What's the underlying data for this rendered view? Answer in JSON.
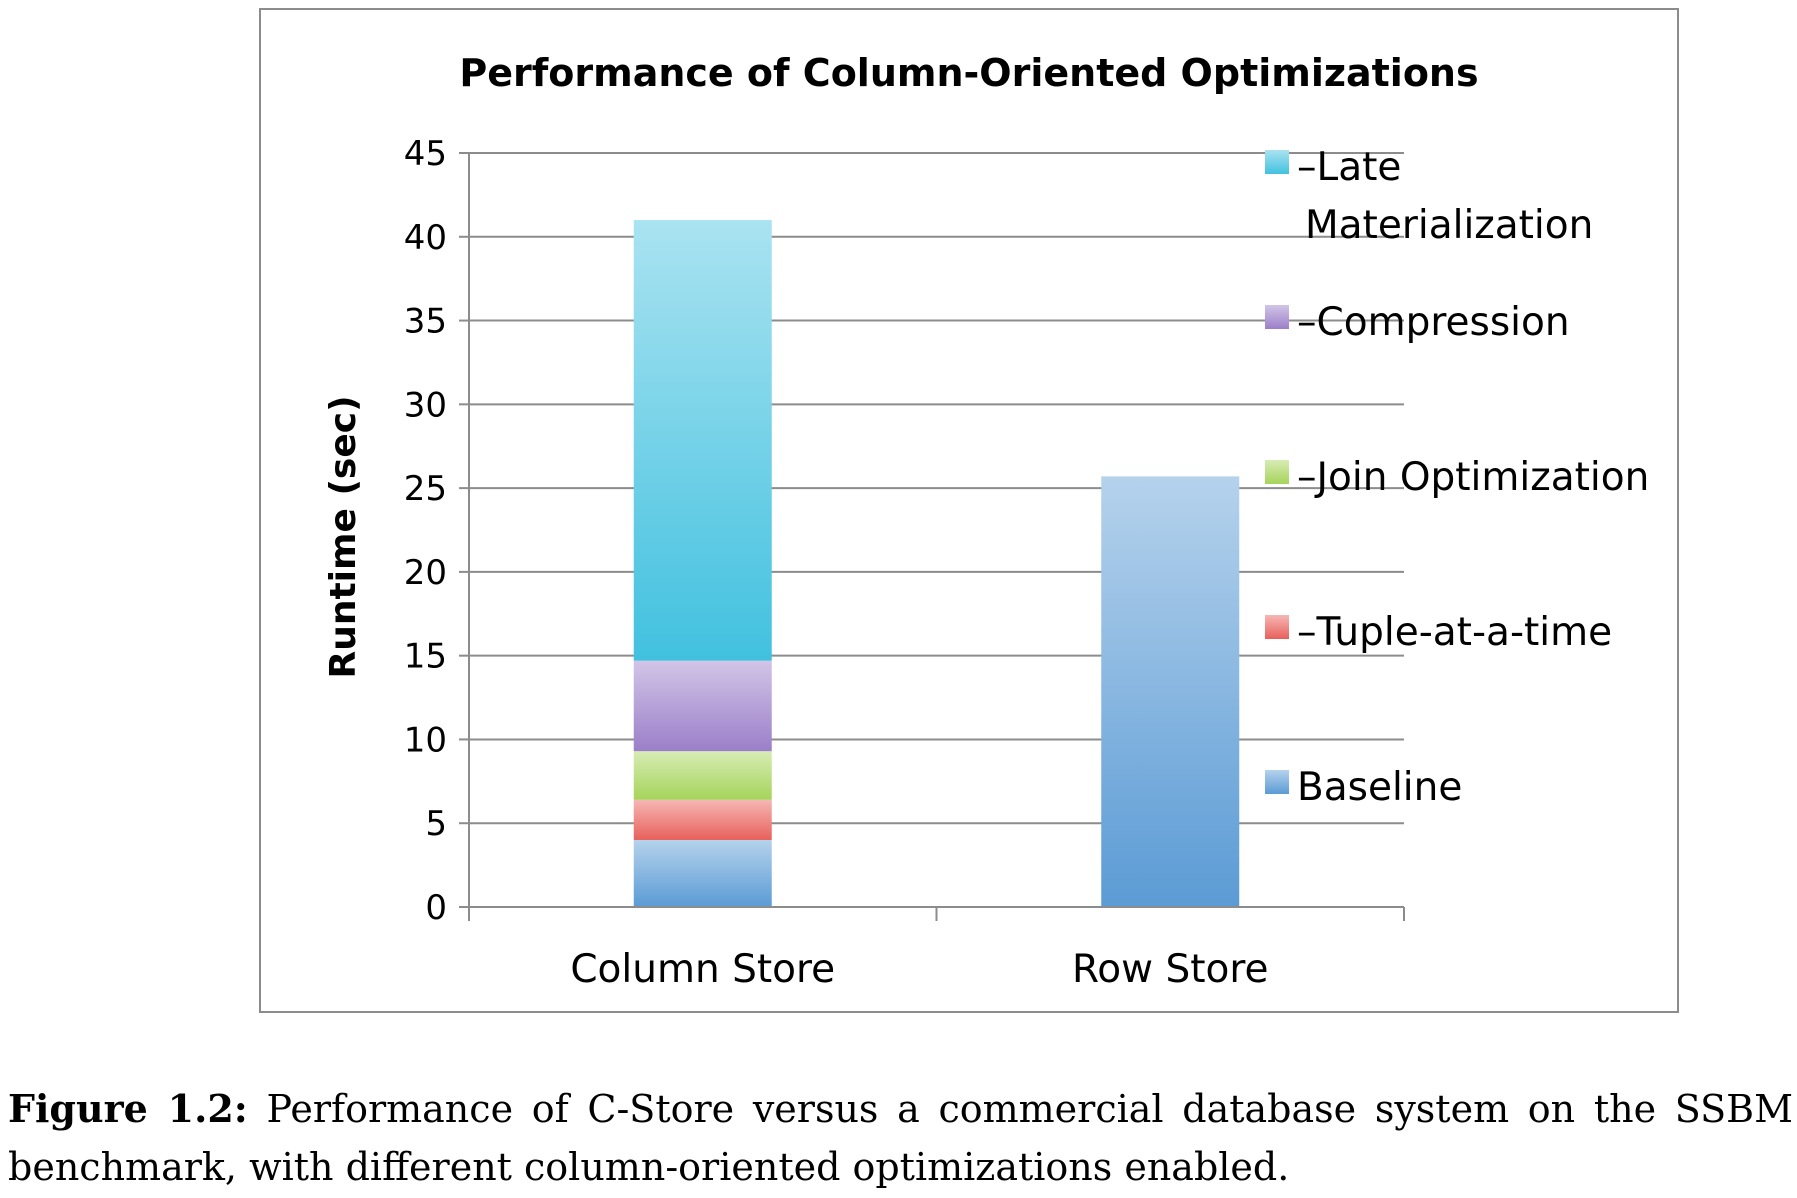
{
  "chart_data": {
    "type": "bar",
    "stacked": true,
    "title": "Performance of Column-Oriented Optimizations",
    "xlabel": "",
    "ylabel": "Runtime (sec)",
    "ylim": [
      0,
      45
    ],
    "yticks": [
      0,
      5,
      10,
      15,
      20,
      25,
      30,
      35,
      40,
      45
    ],
    "grid": true,
    "legend_position": "right",
    "categories": [
      "Column Store",
      "Row Store"
    ],
    "series": [
      {
        "name": "Baseline",
        "values": [
          4.0,
          25.7
        ],
        "color": "#5b9bd5"
      },
      {
        "name": "–Tuple-at-a-time",
        "values": [
          2.4,
          0
        ],
        "color": "#e8605a"
      },
      {
        "name": "–Join Optimization",
        "values": [
          2.9,
          0
        ],
        "color": "#a6d45a"
      },
      {
        "name": "–Compression",
        "values": [
          5.4,
          0
        ],
        "color": "#9b7fc9"
      },
      {
        "name": "–Late Materialization",
        "values": [
          26.3,
          0
        ],
        "color": "#41c1df"
      }
    ],
    "legend_order": [
      {
        "series_index": 4,
        "lines": [
          "–Late",
          "Materialization"
        ]
      },
      {
        "series_index": 3,
        "lines": [
          "–Compression"
        ]
      },
      {
        "series_index": 2,
        "lines": [
          "–Join Optimization"
        ]
      },
      {
        "series_index": 1,
        "lines": [
          "–Tuple-at-a-time"
        ]
      },
      {
        "series_index": 0,
        "lines": [
          "Baseline"
        ]
      }
    ]
  },
  "caption": {
    "label": "Figure 1.2:",
    "text": "Performance of C-Store versus a commercial database system on the SSBM benchmark, with different column-oriented optimizations enabled."
  }
}
